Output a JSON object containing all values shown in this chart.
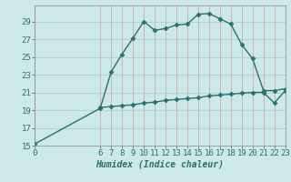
{
  "title": "",
  "xlabel": "Humidex (Indice chaleur)",
  "ylabel": "",
  "background_color": "#cce8e8",
  "grid_color": "#aacccc",
  "line_color": "#2a7070",
  "xlim": [
    0,
    23
  ],
  "ylim": [
    15,
    30
  ],
  "yticks": [
    15,
    17,
    19,
    21,
    23,
    25,
    27,
    29
  ],
  "xticks": [
    0,
    6,
    7,
    8,
    9,
    10,
    11,
    12,
    13,
    14,
    15,
    16,
    17,
    18,
    19,
    20,
    21,
    22,
    23
  ],
  "series1_x": [
    0,
    6,
    7,
    8,
    9,
    10,
    11,
    12,
    13,
    14,
    15,
    16,
    17,
    18,
    19,
    20,
    21,
    22,
    23
  ],
  "series1_y": [
    15.2,
    19.2,
    23.3,
    25.3,
    27.1,
    29.0,
    28.0,
    28.2,
    28.6,
    28.7,
    29.8,
    29.9,
    29.3,
    28.7,
    26.4,
    24.8,
    21.2,
    21.2,
    21.4
  ],
  "series2_x": [
    6,
    7,
    8,
    9,
    10,
    11,
    12,
    13,
    14,
    15,
    16,
    17,
    18,
    19,
    20,
    21,
    22,
    23
  ],
  "series2_y": [
    19.3,
    19.4,
    19.5,
    19.6,
    19.8,
    19.9,
    20.1,
    20.2,
    20.3,
    20.4,
    20.6,
    20.7,
    20.8,
    20.9,
    21.0,
    21.0,
    19.8,
    21.2
  ],
  "marker": "D",
  "markersize": 2.5,
  "linewidth": 1.0,
  "fontsize_label": 7,
  "fontsize_tick": 6.5
}
